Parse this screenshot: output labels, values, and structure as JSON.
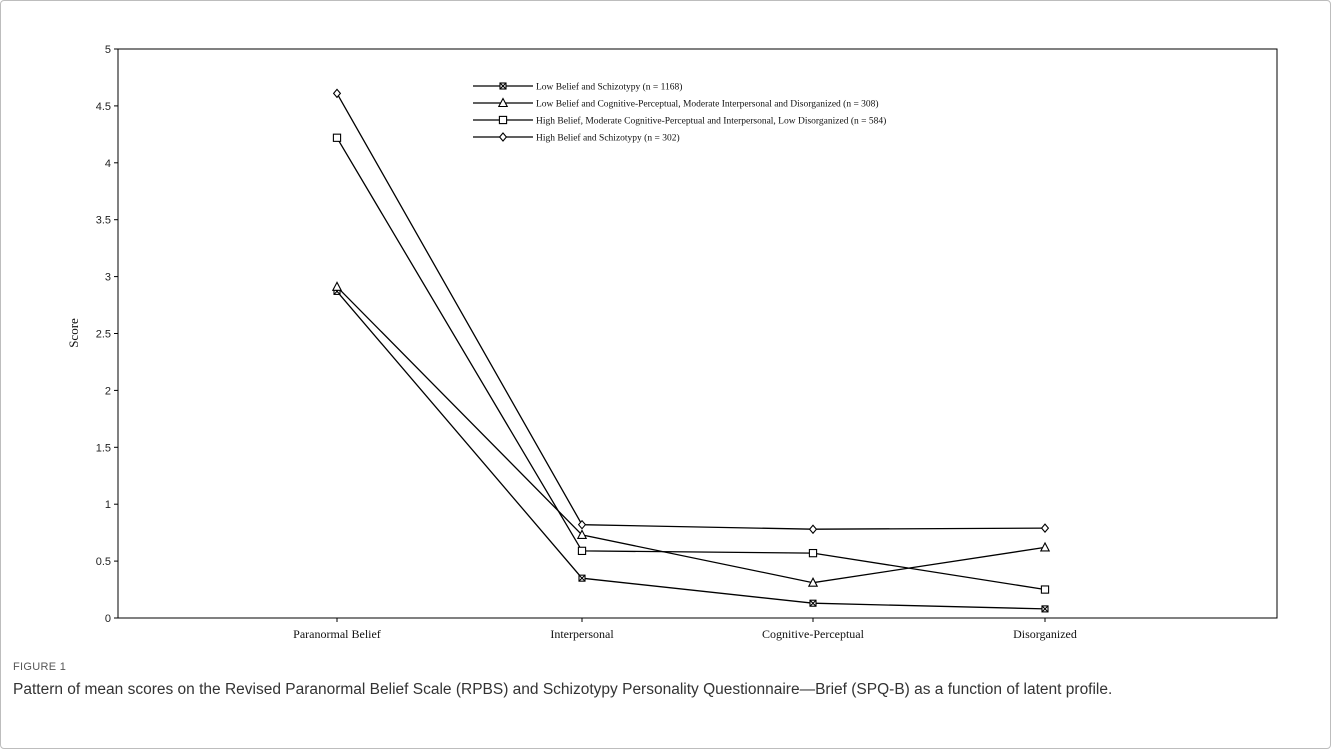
{
  "figure_label": "FIGURE 1",
  "caption": "Pattern of mean scores on the Revised Paranormal Belief Scale (RPBS) and Schizotypy Personality Questionnaire—Brief (SPQ-B) as a function of latent profile.",
  "chart_data": {
    "type": "line",
    "title": "",
    "xlabel": "",
    "ylabel": "Score",
    "ylim": [
      0,
      5
    ],
    "yticks": [
      "0",
      "0.5",
      "1",
      "1.5",
      "2",
      "2.5",
      "3",
      "3.5",
      "4",
      "4.5",
      "5"
    ],
    "categories": [
      "Paranormal Belief",
      "Interpersonal",
      "Cognitive-Perceptual",
      "Disorganized"
    ],
    "legend_position": "top-center",
    "grid": false,
    "series": [
      {
        "name": "Low Belief and Schizotypy (n = 1168)",
        "marker": "x-square",
        "values": [
          2.87,
          0.35,
          0.13,
          0.08
        ]
      },
      {
        "name": "Low Belief and Cognitive-Perceptual, Moderate Interpersonal and Disorganized (n = 308)",
        "marker": "triangle",
        "values": [
          2.91,
          0.73,
          0.31,
          0.62
        ]
      },
      {
        "name": "High Belief, Moderate Cognitive-Perceptual and Interpersonal, Low Disorganized (n = 584)",
        "marker": "square",
        "values": [
          4.22,
          0.59,
          0.57,
          0.25
        ]
      },
      {
        "name": "High Belief and Schizotypy (n = 302)",
        "marker": "diamond",
        "values": [
          4.61,
          0.82,
          0.78,
          0.79
        ]
      }
    ]
  }
}
